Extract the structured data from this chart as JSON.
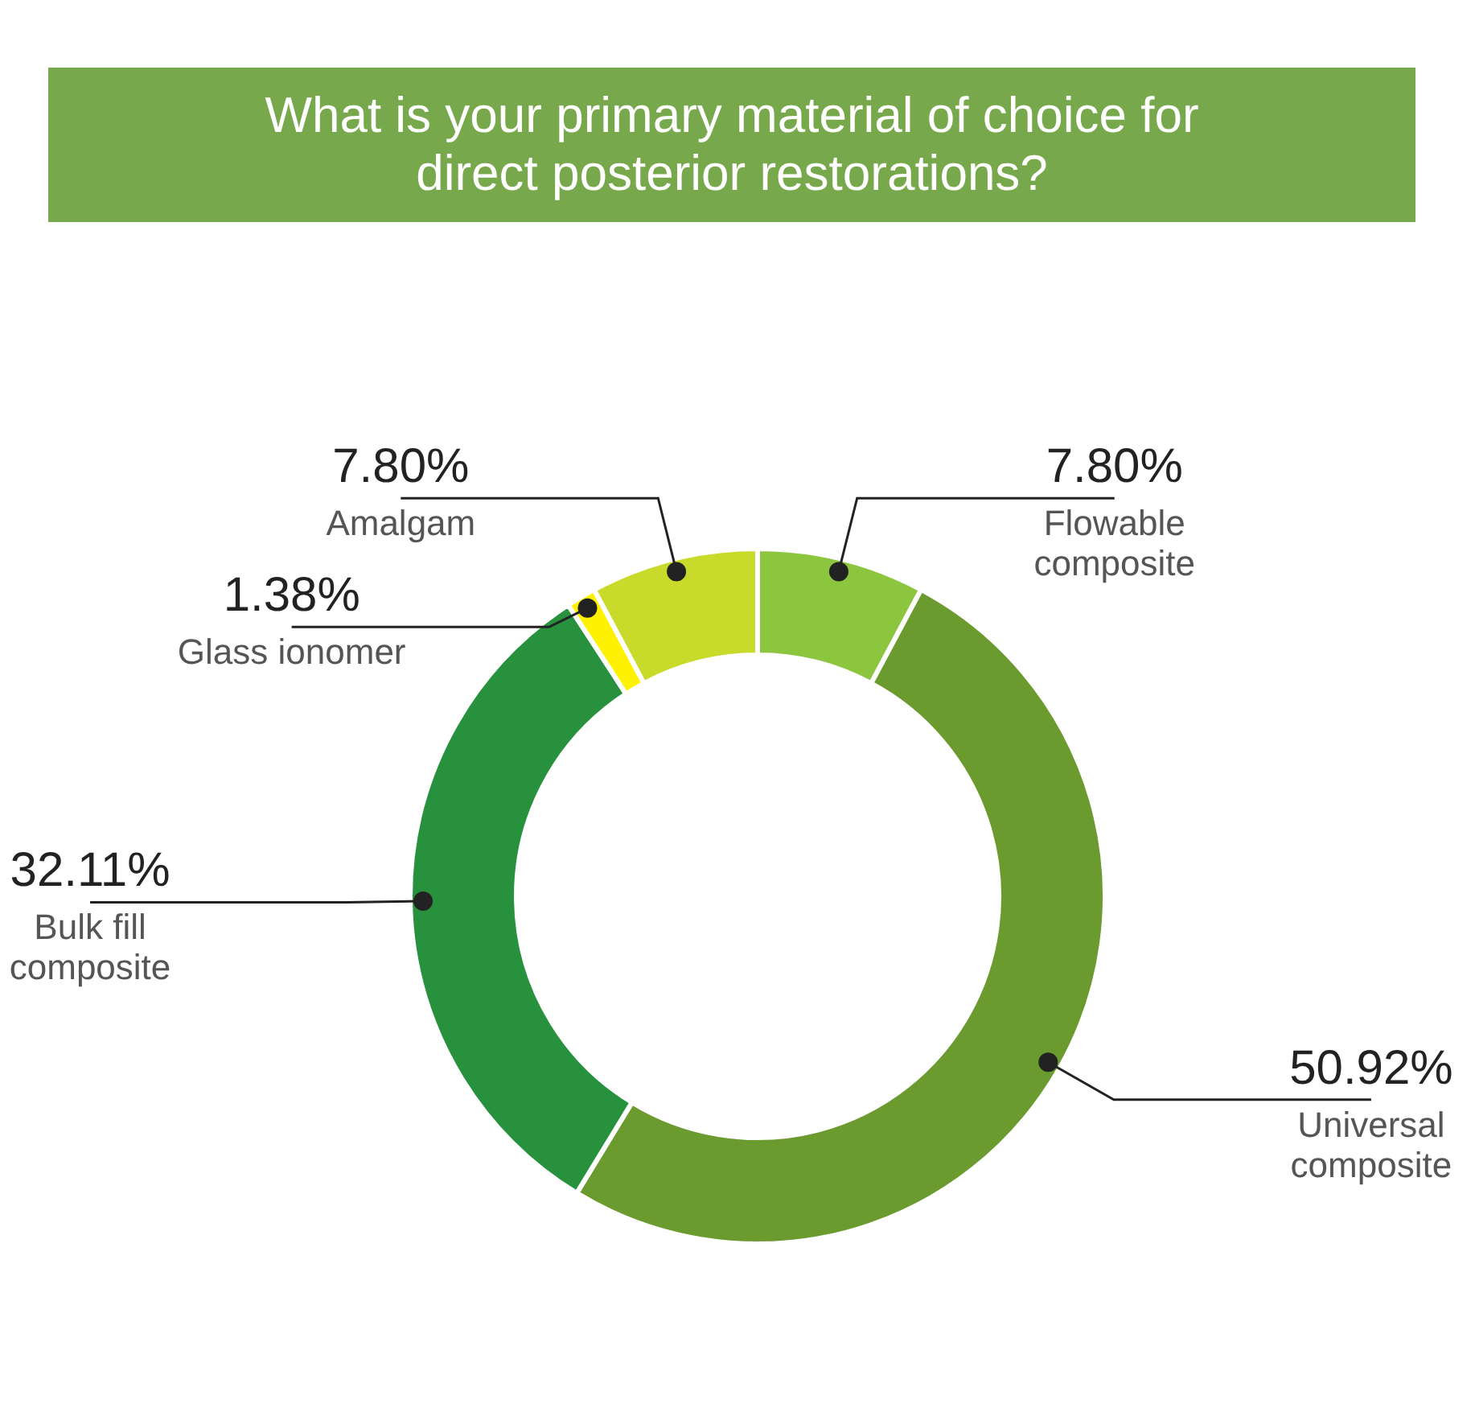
{
  "chart_data": {
    "type": "donut",
    "title": "What is your primary material of choice for direct posterior restorations?",
    "categories": [
      "Flowable composite",
      "Universal composite",
      "Bulk fill composite",
      "Glass ionomer",
      "Amalgam"
    ],
    "values": [
      7.8,
      50.92,
      32.11,
      1.38,
      7.8
    ],
    "colors": [
      "#8cc63f",
      "#6b9b2f",
      "#27913d",
      "#fff200",
      "#c9da2b"
    ],
    "value_labels": [
      "7.80%",
      "50.92%",
      "32.11%",
      "1.38%",
      "7.80%"
    ]
  }
}
